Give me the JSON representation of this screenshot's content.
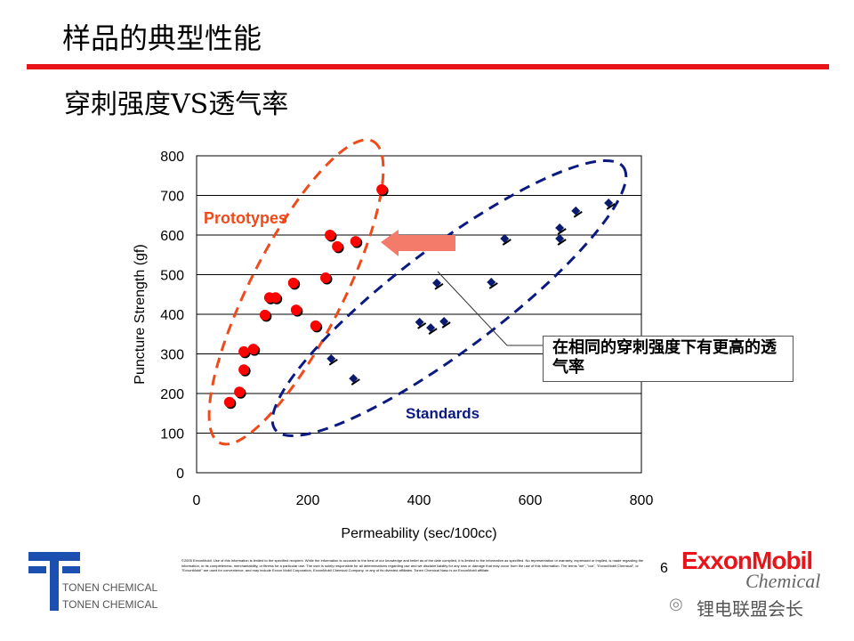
{
  "slide": {
    "title": "样品的典型性能",
    "subtitle": "穿刺强度VS透气率",
    "page_number": "6",
    "disclaimer": "©2005 ExxonMobil. Use of this information is limited to the specified recipient. While the information is accurate to the best of our knowledge and belief as of the date compiled, it is limited to the information as specified. No representation or warranty, expressed or implied, is made regarding the information, or its completeness, merchantability, or fitness for a particular use. The user is solely responsible for all determinations regarding use and we disclaim liability for any loss or damage that may occur from the use of this information. The terms \"we\", \"our\", \"ExxonMobil Chemical\", or \"ExxonMobil\" are used for convenience, and may include Exxon Mobil Corporation, ExxonMobil Chemical Company, or any of its divested affiliates. Tonen Chemical Nasu is an ExxonMobil affiliate.",
    "tonen_1": "TONEN CHEMICAL",
    "tonen_2": "TONEN CHEMICAL",
    "exxon_logo": "ExxonMobil",
    "exxon_chemical": "Chemical",
    "watermark": "锂电联盟会长"
  },
  "colors": {
    "accent": "#e8141a",
    "prototype": "#ff0000",
    "standard": "#0a1a6e",
    "proto_ellipse": "#f04a1a",
    "std_ellipse": "#0a1a80"
  },
  "chart_data": {
    "type": "scatter",
    "xlabel": "Permeability (sec/100cc)",
    "ylabel": "Puncture Strength (gf)",
    "xlim": [
      0,
      800
    ],
    "ylim": [
      0,
      800
    ],
    "xticks": [
      "0",
      "200",
      "400",
      "600",
      "800"
    ],
    "yticks": [
      "0",
      "100",
      "200",
      "300",
      "400",
      "500",
      "600",
      "700",
      "800"
    ],
    "grid": "horizontal",
    "series": [
      {
        "name": "Prototypes",
        "points": [
          [
            59,
            178
          ],
          [
            77,
            204
          ],
          [
            85,
            260
          ],
          [
            85,
            306
          ],
          [
            102,
            312
          ],
          [
            123,
            398
          ],
          [
            131,
            442
          ],
          [
            142,
            442
          ],
          [
            174,
            479
          ],
          [
            179,
            411
          ],
          [
            214,
            371
          ],
          [
            232,
            492
          ],
          [
            240,
            600
          ],
          [
            253,
            571
          ],
          [
            286,
            584
          ],
          [
            333,
            715
          ]
        ]
      },
      {
        "name": "Standards",
        "points": [
          [
            242,
            288
          ],
          [
            282,
            238
          ],
          [
            401,
            380
          ],
          [
            421,
            366
          ],
          [
            445,
            382
          ],
          [
            432,
            479
          ],
          [
            530,
            481
          ],
          [
            554,
            591
          ],
          [
            653,
            618
          ],
          [
            653,
            591
          ],
          [
            682,
            661
          ],
          [
            741,
            681
          ]
        ]
      }
    ],
    "annotation": "在相同的穿刺强度下有更高的透气率"
  }
}
